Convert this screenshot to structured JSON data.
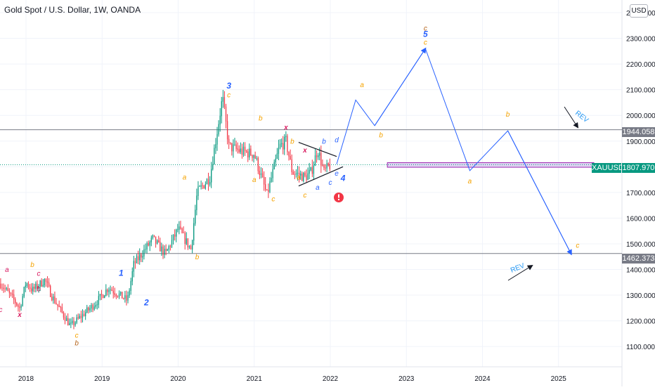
{
  "title": "Gold Spot / U.S. Dollar, 1W, OANDA",
  "currency_button": "USD",
  "symbol": "XAUUSD",
  "current_price": "1807.970",
  "levels": [
    "1944.058",
    "1462.373"
  ],
  "y_axis_labels": [
    "2400.000",
    "2300.000",
    "2200.000",
    "2100.000",
    "2000.000",
    "1900.000",
    "1800.000",
    "1700.000",
    "1600.000",
    "1500.000",
    "1400.000",
    "1300.000",
    "1200.000",
    "1100.000"
  ],
  "x_axis_labels": [
    "2018",
    "2019",
    "2020",
    "2021",
    "2022",
    "2023",
    "2024",
    "2025"
  ],
  "colors": {
    "up": "#089981",
    "down": "#f23645",
    "projection": "#2962ff",
    "orange": "#f5a300",
    "pink": "#d81b60",
    "blue_label": "#2962ff",
    "zone": "#9c27b0",
    "grid": "#f0f3fa",
    "axis_text": "#131722"
  },
  "chart_data": {
    "type": "candlestick",
    "title": "Gold Spot / U.S. Dollar, 1W, OANDA",
    "x_scale": "time (weekly)",
    "y_range": [
      1050,
      2430
    ],
    "x_range": [
      "2017-09",
      "2025-12"
    ],
    "price_path": [
      [
        "2017-09",
        1345
      ],
      [
        "2017-11",
        1285
      ],
      [
        "2017-12",
        1250
      ],
      [
        "2018-01",
        1350
      ],
      [
        "2018-02",
        1320
      ],
      [
        "2018-04",
        1360
      ],
      [
        "2018-05",
        1300
      ],
      [
        "2018-08",
        1180
      ],
      [
        "2018-10",
        1225
      ],
      [
        "2018-12",
        1270
      ],
      [
        "2019-02",
        1330
      ],
      [
        "2019-05",
        1280
      ],
      [
        "2019-06",
        1420
      ],
      [
        "2019-09",
        1520
      ],
      [
        "2019-11",
        1460
      ],
      [
        "2020-01",
        1560
      ],
      [
        "2020-03",
        1480
      ],
      [
        "2020-04",
        1700
      ],
      [
        "2020-06",
        1760
      ],
      [
        "2020-08",
        2070
      ],
      [
        "2020-09",
        1880
      ],
      [
        "2020-11",
        1860
      ],
      [
        "2021-01",
        1850
      ],
      [
        "2021-03",
        1690
      ],
      [
        "2021-05",
        1880
      ],
      [
        "2021-06",
        1900
      ],
      [
        "2021-07",
        1780
      ],
      [
        "2021-09",
        1760
      ],
      [
        "2021-10",
        1780
      ],
      [
        "2021-11",
        1870
      ],
      [
        "2021-12",
        1780
      ],
      [
        "2022-01",
        1808
      ]
    ],
    "projection_path": [
      [
        "2022-02",
        1810
      ],
      [
        "2022-05",
        2060
      ],
      [
        "2022-08",
        1960
      ],
      [
        "2023-04",
        2260
      ],
      [
        "2023-11",
        1785
      ],
      [
        "2024-05",
        1940
      ],
      [
        "2025-03",
        1460
      ]
    ],
    "horizontal_levels": [
      1944.058,
      1462.373
    ],
    "current_price": 1807.97,
    "zone": {
      "from": "2022-10",
      "to": "2025-12",
      "low": 1798,
      "high": 1816
    },
    "triangle": {
      "upper": [
        [
          "2021-08",
          1895
        ],
        [
          "2022-02",
          1840
        ]
      ],
      "lower": [
        [
          "2021-08",
          1725
        ],
        [
          "2022-03",
          1800
        ]
      ]
    },
    "wave_labels": [
      {
        "t": "2017-09",
        "p": 1235,
        "text": "c",
        "color": "pink"
      },
      {
        "t": "2017-10",
        "p": 1390,
        "text": "a",
        "color": "pink"
      },
      {
        "t": "2017-12",
        "p": 1215,
        "text": "x",
        "color": "pink"
      },
      {
        "t": "2018-02",
        "p": 1410,
        "text": "b",
        "color": "orange"
      },
      {
        "t": "2018-03",
        "p": 1375,
        "text": "c",
        "color": "pink"
      },
      {
        "t": "2018-03",
        "p": 1315,
        "text": "b",
        "color": "pink"
      },
      {
        "t": "2018-09",
        "p": 1135,
        "text": "c",
        "color": "orange"
      },
      {
        "t": "2018-09",
        "p": 1105,
        "text": "b",
        "color": "brown"
      },
      {
        "t": "2019-04",
        "p": 1375,
        "text": "1",
        "color": "blue_label"
      },
      {
        "t": "2019-08",
        "p": 1260,
        "text": "2",
        "color": "blue_label"
      },
      {
        "t": "2020-02",
        "p": 1750,
        "text": "a",
        "color": "orange"
      },
      {
        "t": "2020-04",
        "p": 1440,
        "text": "b",
        "color": "orange"
      },
      {
        "t": "2020-09",
        "p": 2105,
        "text": "3",
        "color": "blue_label"
      },
      {
        "t": "2020-09",
        "p": 2070,
        "text": "c",
        "color": "orange"
      },
      {
        "t": "2021-01",
        "p": 1740,
        "text": "a",
        "color": "orange"
      },
      {
        "t": "2021-02",
        "p": 1980,
        "text": "b",
        "color": "orange"
      },
      {
        "t": "2021-04",
        "p": 1665,
        "text": "c",
        "color": "orange"
      },
      {
        "t": "2021-06",
        "p": 1945,
        "text": "x",
        "color": "pink"
      },
      {
        "t": "2021-07",
        "p": 1890,
        "text": "b",
        "color": "orange"
      },
      {
        "t": "2021-08",
        "p": 1750,
        "text": "a",
        "color": "orange"
      },
      {
        "t": "2021-09",
        "p": 1855,
        "text": "x",
        "color": "pink"
      },
      {
        "t": "2021-09",
        "p": 1680,
        "text": "c",
        "color": "orange"
      },
      {
        "t": "2021-11",
        "p": 1710,
        "text": "a",
        "color": "blue_label"
      },
      {
        "t": "2021-12",
        "p": 1890,
        "text": "b",
        "color": "blue_label"
      },
      {
        "t": "2022-01",
        "p": 1730,
        "text": "c",
        "color": "blue_label"
      },
      {
        "t": "2022-02",
        "p": 1895,
        "text": "d",
        "color": "blue_label"
      },
      {
        "t": "2022-02",
        "p": 1765,
        "text": "e",
        "color": "blue_label"
      },
      {
        "t": "2022-03",
        "p": 1745,
        "text": "4",
        "color": "blue_label"
      },
      {
        "t": "2022-06",
        "p": 2110,
        "text": "a",
        "color": "orange"
      },
      {
        "t": "2022-09",
        "p": 1915,
        "text": "b",
        "color": "orange"
      },
      {
        "t": "2023-04",
        "p": 2330,
        "text": "c",
        "color": "brown"
      },
      {
        "t": "2023-04",
        "p": 2305,
        "text": "5",
        "color": "blue_label"
      },
      {
        "t": "2023-04",
        "p": 2275,
        "text": "c",
        "color": "orange"
      },
      {
        "t": "2023-11",
        "p": 1735,
        "text": "a",
        "color": "orange"
      },
      {
        "t": "2024-05",
        "p": 1995,
        "text": "b",
        "color": "orange"
      },
      {
        "t": "2025-04",
        "p": 1485,
        "text": "c",
        "color": "orange"
      }
    ],
    "annotations": [
      "REV",
      "REV"
    ],
    "warning_icon": "warning-icon"
  }
}
